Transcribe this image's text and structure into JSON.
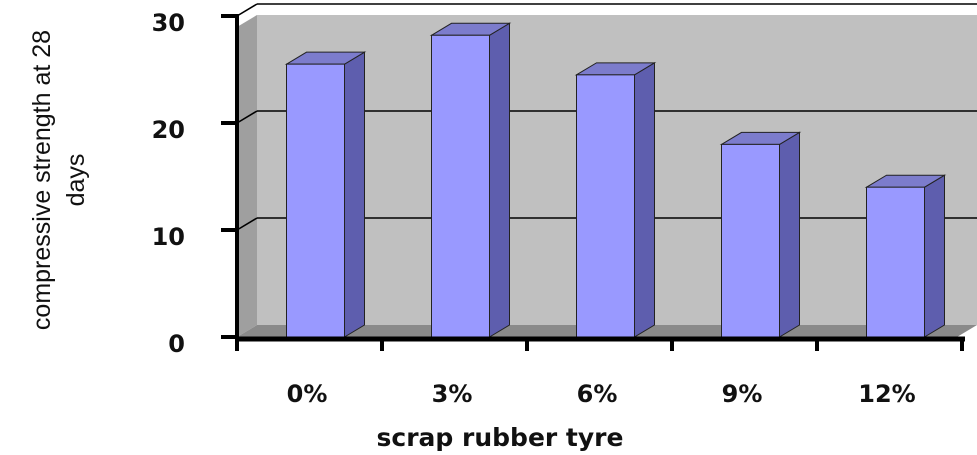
{
  "chart_data": {
    "type": "bar",
    "categories": [
      "0%",
      "3%",
      "6%",
      "9%",
      "12%"
    ],
    "values": [
      25.5,
      28.2,
      24.5,
      18.0,
      14.0
    ],
    "xlabel": "scrap rubber tyre",
    "ylabel_line1": "compressive strength at 28",
    "ylabel_line2": "days",
    "ylim": [
      0,
      30
    ],
    "yticks": [
      "0",
      "10",
      "20",
      "30"
    ],
    "grid": true,
    "style": "3d-column",
    "colors": {
      "bar_front": "#9999ff",
      "bar_side": "#5e5eae",
      "bar_top": "#7c7ccc",
      "wall": "#c0c0c0",
      "floor": "#8a8a8a",
      "axis": "#000000"
    }
  }
}
